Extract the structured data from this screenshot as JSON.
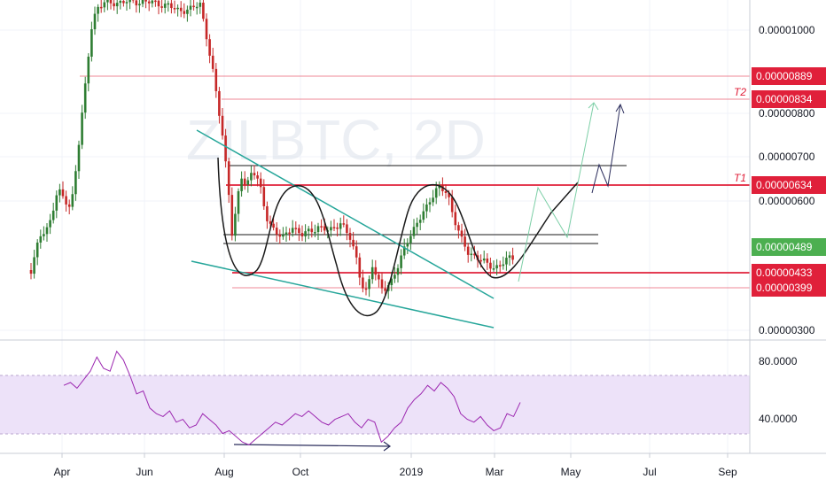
{
  "chart_data": [
    {
      "type": "candlestick",
      "symbol_watermark": "ZILBTC, 2D",
      "x_ticks": [
        "Apr",
        "Jun",
        "Aug",
        "Oct",
        "2019",
        "Mar",
        "May",
        "Jul",
        "Sep"
      ],
      "y_ticks": [
        "0.00001000",
        "0.00000800",
        "0.00000700",
        "0.00000600",
        "0.00000300"
      ],
      "price_tags": [
        {
          "value": "0.00000889",
          "color": "#e0203a"
        },
        {
          "value": "0.00000834",
          "color": "#e0203a",
          "prefix": "T2"
        },
        {
          "value": "0.00000634",
          "color": "#e0203a",
          "prefix": "T1"
        },
        {
          "value": "0.00000489",
          "color": "#4caf50"
        },
        {
          "value": "0.00000433",
          "color": "#e0203a"
        },
        {
          "value": "0.00000399",
          "color": "#e0203a"
        }
      ],
      "last_price": 4.89e-06
    },
    {
      "type": "line",
      "indicator": "RSI",
      "y_ticks": [
        "80.0000",
        "40.0000"
      ],
      "band": [
        30,
        70
      ],
      "range": [
        20,
        100
      ],
      "approx_values": [
        68,
        70,
        66,
        72,
        78,
        88,
        80,
        78,
        92,
        86,
        75,
        62,
        64,
        52,
        48,
        46,
        50,
        42,
        44,
        38,
        40,
        48,
        44,
        40,
        34,
        36,
        32,
        28,
        26,
        30,
        34,
        38,
        42,
        40,
        44,
        48,
        46,
        50,
        46,
        42,
        40,
        44,
        46,
        48,
        42,
        38,
        44,
        42,
        28,
        32,
        38,
        42,
        52,
        58,
        62,
        68,
        64,
        70,
        66,
        60,
        48,
        44,
        42,
        46,
        40,
        36,
        38,
        48,
        46,
        56
      ]
    }
  ],
  "colors": {
    "up": "#26a69a",
    "down": "#ef5350",
    "candle_up_dark": "#2e7d32",
    "candle_down_dark": "#c62828",
    "hline": "#e0203a",
    "trendline": "#26a69a",
    "drawing": "#1a1a1a",
    "arrow_green": "#7ccfa6",
    "arrow_navy": "#2b2d5c",
    "rsi": "#9c27b0",
    "rsi_band": "#ede2f9"
  }
}
